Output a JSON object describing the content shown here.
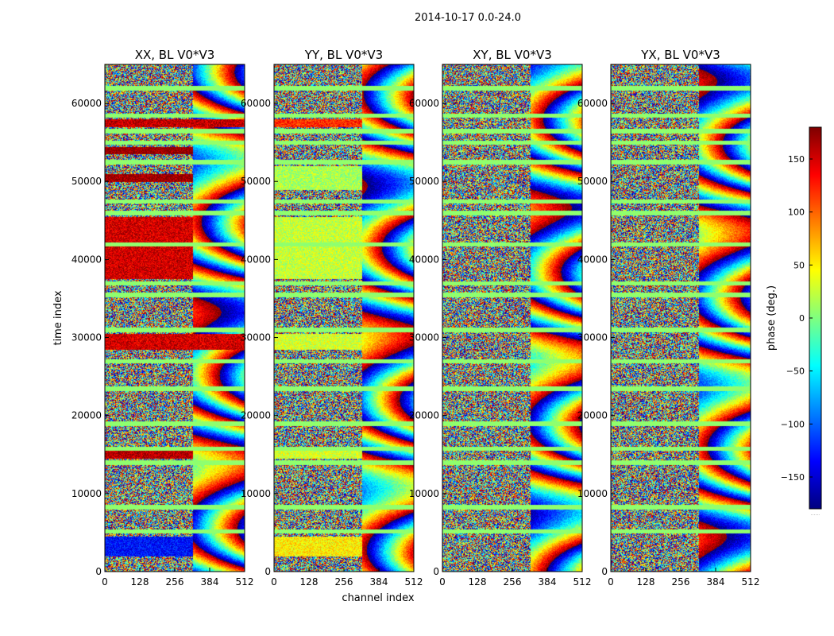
{
  "figure": {
    "suptitle": "2014-10-17 0.0-24.0",
    "xlabel": "channel index",
    "ylabel": "time index",
    "colorbar": {
      "label": "phase (deg.)",
      "range": [
        -180,
        180
      ],
      "ticks": [
        150,
        100,
        50,
        0,
        -50,
        -100,
        -150
      ],
      "tick_labels": [
        "150",
        "100",
        "50",
        "0",
        "−50",
        "−100",
        "−150"
      ],
      "colormap": "jet",
      "stops": [
        "#00007f",
        "#0000ff",
        "#007fff",
        "#00ffff",
        "#7fff7f",
        "#ffff00",
        "#ff7f00",
        "#ff0000",
        "#7f0000"
      ],
      "footnote": "......"
    }
  },
  "chart_data": [
    {
      "type": "heatmap",
      "title": "XX, BL V0*V3",
      "xlabel": "channel index",
      "ylabel": "time index",
      "xlim": [
        0,
        512
      ],
      "ylim": [
        0,
        65000
      ],
      "x_ticks": [
        0,
        128,
        256,
        384,
        512
      ],
      "y_ticks": [
        0,
        10000,
        20000,
        30000,
        40000,
        50000,
        60000
      ],
      "value": "phase (deg.)",
      "bands": [
        {
          "y": [
            2000,
            4500
          ],
          "x": [
            0,
            320
          ],
          "phase": -130
        },
        {
          "y": [
            14500,
            15500
          ],
          "x": [
            0,
            320
          ],
          "phase": 160
        },
        {
          "y": [
            28500,
            30500
          ],
          "x": [
            0,
            512
          ],
          "phase": 150
        },
        {
          "y": [
            37500,
            45500
          ],
          "x": [
            0,
            320
          ],
          "phase": 150
        },
        {
          "y": [
            50000,
            51000
          ],
          "x": [
            0,
            320
          ],
          "phase": 170
        },
        {
          "y": [
            53500,
            54500
          ],
          "x": [
            0,
            320
          ],
          "phase": 175
        },
        {
          "y": [
            57000,
            58000
          ],
          "x": [
            0,
            512
          ],
          "phase": 155
        }
      ],
      "flat_rows": [
        5200,
        8300,
        14000,
        15800,
        19000,
        23500,
        27000,
        31000,
        35500,
        37000,
        42000,
        46000,
        47500,
        52500,
        55000,
        56500,
        58500,
        62000
      ]
    },
    {
      "type": "heatmap",
      "title": "YY, BL V0*V3",
      "xlabel": "channel index",
      "ylabel": "",
      "xlim": [
        0,
        512
      ],
      "ylim": [
        0,
        65000
      ],
      "x_ticks": [
        0,
        128,
        256,
        384,
        512
      ],
      "y_ticks": [
        0,
        10000,
        20000,
        30000,
        40000,
        50000,
        60000
      ],
      "value": "phase (deg.)",
      "bands": [
        {
          "y": [
            2000,
            4500
          ],
          "x": [
            0,
            320
          ],
          "phase": 50
        },
        {
          "y": [
            14500,
            15500
          ],
          "x": [
            0,
            320
          ],
          "phase": 30
        },
        {
          "y": [
            28500,
            30500
          ],
          "x": [
            0,
            320
          ],
          "phase": 30
        },
        {
          "y": [
            37500,
            45500
          ],
          "x": [
            0,
            320
          ],
          "phase": 25
        },
        {
          "y": [
            49000,
            52000
          ],
          "x": [
            0,
            320
          ],
          "phase": 15
        },
        {
          "y": [
            57000,
            58000
          ],
          "x": [
            0,
            320
          ],
          "phase": 120
        }
      ],
      "flat_rows": [
        5200,
        8300,
        14000,
        15800,
        19000,
        23500,
        27000,
        31000,
        35500,
        37000,
        42000,
        46000,
        47500,
        52500,
        55000,
        56500,
        58500,
        62000
      ]
    },
    {
      "type": "heatmap",
      "title": "XY, BL V0*V3",
      "xlabel": "channel index",
      "ylabel": "",
      "xlim": [
        0,
        512
      ],
      "ylim": [
        0,
        65000
      ],
      "x_ticks": [
        0,
        128,
        256,
        384,
        512
      ],
      "y_ticks": [
        0,
        10000,
        20000,
        30000,
        40000,
        50000,
        60000
      ],
      "value": "phase (deg.)",
      "bands": [],
      "flat_rows": [
        5200,
        8300,
        14000,
        15800,
        19000,
        23500,
        27000,
        31000,
        35500,
        37000,
        42000,
        46000,
        47500,
        52500,
        55000,
        56500,
        58500,
        62000
      ]
    },
    {
      "type": "heatmap",
      "title": "YX, BL V0*V3",
      "xlabel": "channel index",
      "ylabel": "",
      "xlim": [
        0,
        512
      ],
      "ylim": [
        0,
        65000
      ],
      "x_ticks": [
        0,
        128,
        256,
        384,
        512
      ],
      "y_ticks": [
        0,
        10000,
        20000,
        30000,
        40000,
        50000,
        60000
      ],
      "value": "phase (deg.)",
      "bands": [],
      "flat_rows": [
        5200,
        8300,
        14000,
        15800,
        19000,
        23500,
        27000,
        31000,
        35500,
        37000,
        42000,
        46000,
        47500,
        52500,
        55000,
        56500,
        58500,
        62000
      ]
    }
  ]
}
